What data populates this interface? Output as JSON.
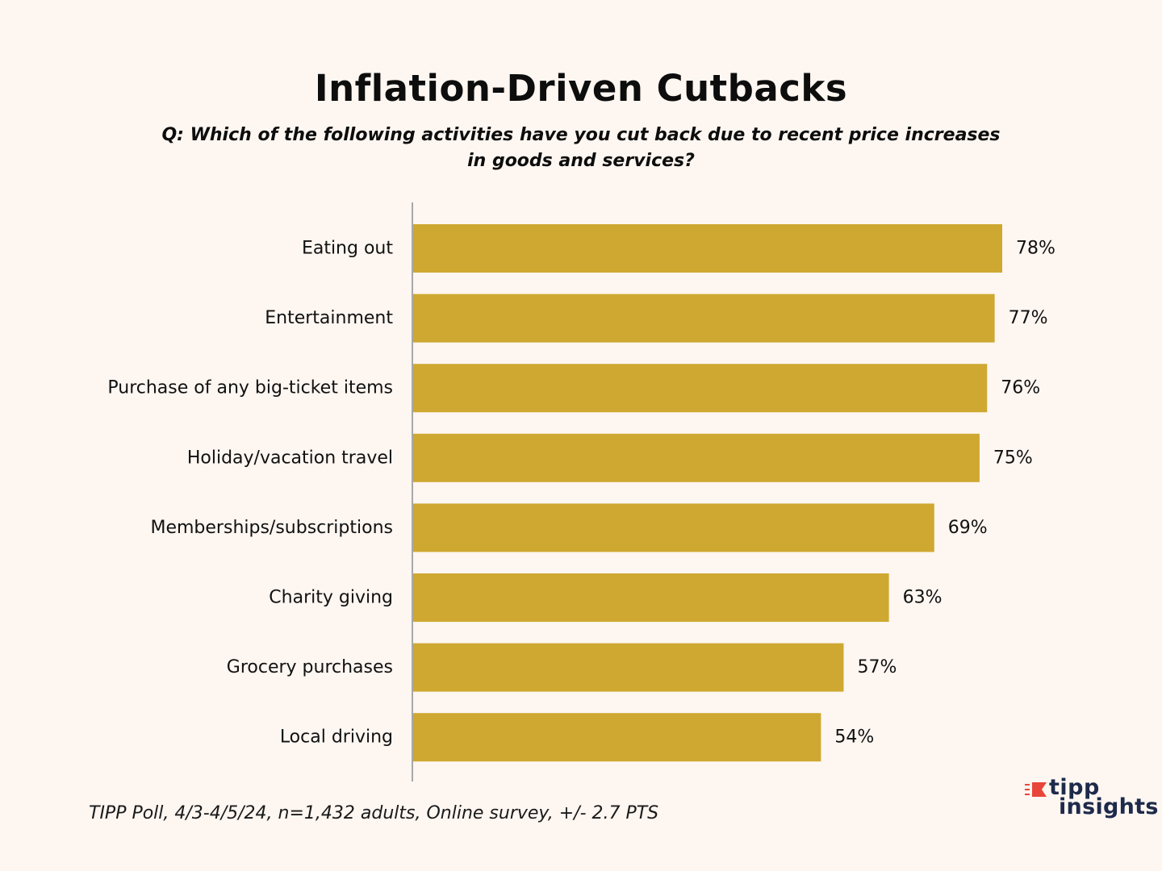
{
  "header": {
    "title": "Inflation-Driven Cutbacks",
    "subtitle": "Q: Which of the following activities have you cut back due to recent price increases in goods and services?"
  },
  "footnote": "TIPP Poll, 4/3-4/5/24, n=1,432 adults, Online survey, +/- 2.7 PTS",
  "logo": {
    "line1": "tipp",
    "line2": "insights",
    "accent_color": "#e8463a",
    "text_color": "#1d2a4b"
  },
  "colors": {
    "background": "#fdf6f1",
    "bar": "#cea831",
    "axis": "#a8a8a8",
    "text": "#111111"
  },
  "chart_data": {
    "type": "bar",
    "orientation": "horizontal",
    "title": "Inflation-Driven Cutbacks",
    "categories": [
      "Eating out",
      "Entertainment",
      "Purchase of any big-ticket items",
      "Holiday/vacation travel",
      "Memberships/subscriptions",
      "Charity giving",
      "Grocery purchases",
      "Local driving"
    ],
    "values": [
      78,
      77,
      76,
      75,
      69,
      63,
      57,
      54
    ],
    "value_labels": [
      "78%",
      "77%",
      "76%",
      "75%",
      "69%",
      "63%",
      "57%",
      "54%"
    ],
    "unit": "%",
    "xlim": [
      0,
      100
    ],
    "grid": false,
    "legend": "none"
  }
}
